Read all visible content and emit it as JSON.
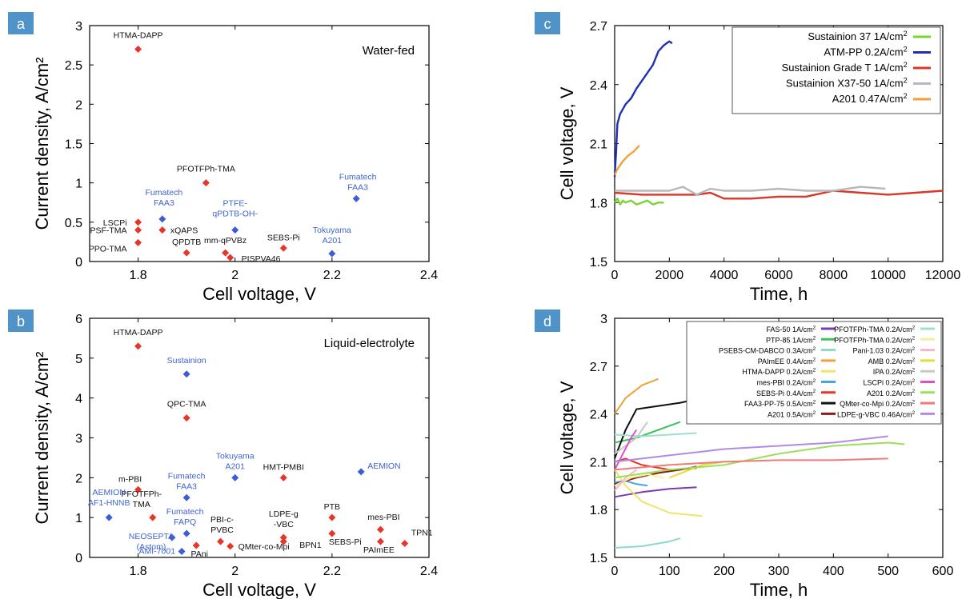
{
  "colors": {
    "red": "#e8352a",
    "blue": "#3d5cd6",
    "label_blue": "#3f63d3",
    "panel_badge": "#4f93c9"
  },
  "chart_data": [
    {
      "panel": "a",
      "type": "scatter",
      "annotation": "Water-fed",
      "xlabel": "Cell voltage, V",
      "ylabel": "Current density, A/cm²",
      "xlim": [
        1.7,
        2.4
      ],
      "ylim": [
        0,
        3
      ],
      "xticks": [
        "1.8",
        "2",
        "2.2",
        "2.4"
      ],
      "yticks": [
        "0",
        "0.5",
        "1",
        "1.5",
        "2",
        "2.5",
        "3"
      ],
      "points": [
        {
          "label": "HTMA-DAPP",
          "x": 1.8,
          "y": 2.7,
          "color": "red"
        },
        {
          "label": "PFOTFPh-TMA",
          "x": 1.94,
          "y": 1.0,
          "color": "red"
        },
        {
          "label": "LSCPi",
          "x": 1.8,
          "y": 0.5,
          "color": "red"
        },
        {
          "label": "PSF-TMA",
          "x": 1.8,
          "y": 0.4,
          "color": "red"
        },
        {
          "label": "PPO-TMA",
          "x": 1.8,
          "y": 0.24,
          "color": "red"
        },
        {
          "label": "xQAPS",
          "x": 1.85,
          "y": 0.4,
          "color": "red"
        },
        {
          "label": "QPDTB",
          "x": 1.9,
          "y": 0.11,
          "color": "red"
        },
        {
          "label": "mm-qPVBz",
          "x": 1.98,
          "y": 0.11,
          "color": "red"
        },
        {
          "label": "PISPVA46",
          "x": 1.99,
          "y": 0.05,
          "color": "red"
        },
        {
          "label": "SEBS-Pi",
          "x": 2.1,
          "y": 0.17,
          "color": "red"
        },
        {
          "label": "Fumatech FAA3",
          "x": 1.85,
          "y": 0.54,
          "color": "blue"
        },
        {
          "label": "PTFE- qPDTB-OH-",
          "x": 2.0,
          "y": 0.4,
          "color": "blue"
        },
        {
          "label": "Fumatech FAA3",
          "x": 2.25,
          "y": 0.8,
          "color": "blue"
        },
        {
          "label": "Tokuyama A201",
          "x": 2.2,
          "y": 0.1,
          "color": "blue"
        }
      ]
    },
    {
      "panel": "b",
      "type": "scatter",
      "annotation": "Liquid-electrolyte",
      "xlabel": "Cell voltage, V",
      "ylabel": "Current density, A/cm²",
      "xlim": [
        1.7,
        2.4
      ],
      "ylim": [
        0,
        6
      ],
      "xticks": [
        "1.8",
        "2",
        "2.2",
        "2.4"
      ],
      "yticks": [
        "0",
        "1",
        "2",
        "3",
        "4",
        "5",
        "6"
      ],
      "points": [
        {
          "label": "HTMA-DAPP",
          "x": 1.8,
          "y": 5.3,
          "color": "red"
        },
        {
          "label": "QPC-TMA",
          "x": 1.9,
          "y": 3.5,
          "color": "red"
        },
        {
          "label": "HMT-PMBI",
          "x": 2.1,
          "y": 2.0,
          "color": "red"
        },
        {
          "label": "m-PBI",
          "x": 1.8,
          "y": 1.7,
          "color": "red"
        },
        {
          "label": "PFOTFPh- TMA",
          "x": 1.83,
          "y": 1.0,
          "color": "red"
        },
        {
          "label": "PAni",
          "x": 1.92,
          "y": 0.3,
          "color": "red"
        },
        {
          "label": "PBI-c- PVBC",
          "x": 1.97,
          "y": 0.4,
          "color": "red"
        },
        {
          "label": "QMter-co-Mpi",
          "x": 1.99,
          "y": 0.28,
          "color": "red"
        },
        {
          "label": "LDPE-g -VBC",
          "x": 2.1,
          "y": 0.5,
          "color": "red"
        },
        {
          "label": "BPN1",
          "x": 2.1,
          "y": 0.4,
          "color": "red"
        },
        {
          "label": "PTB",
          "x": 2.2,
          "y": 1.0,
          "color": "red"
        },
        {
          "label": "SEBS-Pi",
          "x": 2.2,
          "y": 0.6,
          "color": "red"
        },
        {
          "label": "mes-PBI",
          "x": 2.3,
          "y": 0.7,
          "color": "red"
        },
        {
          "label": "PAImEE",
          "x": 2.3,
          "y": 0.4,
          "color": "red"
        },
        {
          "label": "TPN1",
          "x": 2.35,
          "y": 0.35,
          "color": "red"
        },
        {
          "label": "Sustainion",
          "x": 1.9,
          "y": 4.6,
          "color": "blue"
        },
        {
          "label": "Tokuyama A201",
          "x": 2.0,
          "y": 2.0,
          "color": "blue"
        },
        {
          "label": "AEMION",
          "x": 2.26,
          "y": 2.15,
          "color": "blue"
        },
        {
          "label": "Fumatech FAA3",
          "x": 1.9,
          "y": 1.5,
          "color": "blue"
        },
        {
          "label": "AEMION AF1-HNNB",
          "x": 1.74,
          "y": 1.0,
          "color": "blue"
        },
        {
          "label": "Fumatech FAPQ",
          "x": 1.9,
          "y": 0.6,
          "color": "blue"
        },
        {
          "label": "NEOSEPTA (Astom)",
          "x": 1.87,
          "y": 0.5,
          "color": "blue"
        },
        {
          "label": "AMI-7001",
          "x": 1.89,
          "y": 0.15,
          "color": "blue"
        }
      ]
    },
    {
      "panel": "c",
      "type": "line",
      "xlabel": "Time, h",
      "ylabel": "Cell voltage, V",
      "xlim": [
        0,
        12000
      ],
      "ylim": [
        1.5,
        2.7
      ],
      "xticks": [
        "0",
        "2000",
        "4000",
        "6000",
        "8000",
        "10000",
        "12000"
      ],
      "yticks": [
        "1.5",
        "1.8",
        "2.1",
        "2.4",
        "2.7"
      ],
      "legend": "top-right",
      "series": [
        {
          "name": "Sustainion 37 1A/cm²",
          "color": "#7bd432",
          "points": [
            [
              0,
              1.8
            ],
            [
              100,
              1.82
            ],
            [
              200,
              1.79
            ],
            [
              300,
              1.81
            ],
            [
              400,
              1.8
            ],
            [
              600,
              1.81
            ],
            [
              800,
              1.79
            ],
            [
              1000,
              1.8
            ],
            [
              1200,
              1.81
            ],
            [
              1400,
              1.79
            ],
            [
              1600,
              1.8
            ],
            [
              1800,
              1.8
            ]
          ]
        },
        {
          "name": "ATM-PP 0.2A/cm²",
          "color": "#1f2fb5",
          "points": [
            [
              0,
              1.93
            ],
            [
              50,
              2.05
            ],
            [
              100,
              2.2
            ],
            [
              200,
              2.25
            ],
            [
              400,
              2.3
            ],
            [
              600,
              2.33
            ],
            [
              800,
              2.38
            ],
            [
              1000,
              2.42
            ],
            [
              1200,
              2.46
            ],
            [
              1400,
              2.5
            ],
            [
              1600,
              2.57
            ],
            [
              1800,
              2.6
            ],
            [
              2000,
              2.62
            ],
            [
              2100,
              2.61
            ]
          ]
        },
        {
          "name": "Sustainion Grade T 1A/cm²",
          "color": "#d8372a",
          "points": [
            [
              0,
              1.85
            ],
            [
              1000,
              1.84
            ],
            [
              2000,
              1.84
            ],
            [
              3000,
              1.84
            ],
            [
              3500,
              1.85
            ],
            [
              4000,
              1.82
            ],
            [
              5000,
              1.82
            ],
            [
              6000,
              1.83
            ],
            [
              7000,
              1.83
            ],
            [
              8000,
              1.86
            ],
            [
              9000,
              1.85
            ],
            [
              10000,
              1.84
            ],
            [
              11000,
              1.85
            ],
            [
              12000,
              1.86
            ]
          ]
        },
        {
          "name": "Sustainion X37-50 1A/cm²",
          "color": "#b8b8b8",
          "points": [
            [
              0,
              1.86
            ],
            [
              1000,
              1.86
            ],
            [
              2000,
              1.86
            ],
            [
              2500,
              1.88
            ],
            [
              3000,
              1.84
            ],
            [
              3500,
              1.87
            ],
            [
              4000,
              1.86
            ],
            [
              5000,
              1.86
            ],
            [
              6000,
              1.87
            ],
            [
              7000,
              1.86
            ],
            [
              8000,
              1.86
            ],
            [
              9000,
              1.88
            ],
            [
              9900,
              1.87
            ]
          ]
        },
        {
          "name": "A201 0.47A/cm²",
          "color": "#f0a23a",
          "points": [
            [
              0,
              1.94
            ],
            [
              100,
              1.97
            ],
            [
              300,
              2.01
            ],
            [
              500,
              2.04
            ],
            [
              700,
              2.06
            ],
            [
              900,
              2.09
            ]
          ]
        }
      ]
    },
    {
      "panel": "d",
      "type": "line",
      "xlabel": "Time, h",
      "ylabel": "Cell voltage, V",
      "xlim": [
        0,
        600
      ],
      "ylim": [
        1.5,
        3.0
      ],
      "xticks": [
        "0",
        "100",
        "200",
        "300",
        "400",
        "500",
        "600"
      ],
      "yticks": [
        "1.5",
        "1.8",
        "2.1",
        "2.4",
        "2.7",
        "3"
      ],
      "legend": "top-right",
      "series": [
        {
          "name": "FAS-50 1A/cm²",
          "color": "#7b3ab0",
          "points": [
            [
              0,
              1.88
            ],
            [
              50,
              1.91
            ],
            [
              100,
              1.93
            ],
            [
              150,
              1.94
            ]
          ]
        },
        {
          "name": "PTP-85 1A/cm²",
          "color": "#3fc25a",
          "points": [
            [
              0,
              2.22
            ],
            [
              40,
              2.25
            ],
            [
              80,
              2.3
            ],
            [
              120,
              2.35
            ]
          ]
        },
        {
          "name": "PSEBS-CM-DABCO 0.3A/cm²",
          "color": "#8fd8c9",
          "points": [
            [
              0,
              1.56
            ],
            [
              50,
              1.57
            ],
            [
              100,
              1.6
            ],
            [
              120,
              1.62
            ]
          ]
        },
        {
          "name": "PAImEE 0.4A/cm²",
          "color": "#f0a23a",
          "points": [
            [
              0,
              2.4
            ],
            [
              20,
              2.5
            ],
            [
              50,
              2.58
            ],
            [
              80,
              2.62
            ]
          ]
        },
        {
          "name": "HTMA-DAPP 0.2A/cm²",
          "color": "#f2e36a",
          "points": [
            [
              0,
              2.05
            ],
            [
              20,
              1.95
            ],
            [
              50,
              1.85
            ],
            [
              100,
              1.78
            ],
            [
              160,
              1.76
            ]
          ]
        },
        {
          "name": "mes-PBI 0.2A/cm²",
          "color": "#4aa3e0",
          "points": [
            [
              0,
              1.97
            ],
            [
              20,
              1.98
            ],
            [
              40,
              1.96
            ],
            [
              60,
              1.95
            ]
          ]
        },
        {
          "name": "SEBS-Pi 0.4A/cm²",
          "color": "#e8352a",
          "points": [
            [
              0,
              2.1
            ],
            [
              20,
              2.12
            ],
            [
              50,
              2.08
            ],
            [
              100,
              2.05
            ],
            [
              150,
              2.06
            ]
          ]
        },
        {
          "name": "FAA3-PP-75 0.5A/cm²",
          "color": "#111111",
          "points": [
            [
              0,
              2.12
            ],
            [
              20,
              2.3
            ],
            [
              40,
              2.43
            ],
            [
              80,
              2.45
            ],
            [
              120,
              2.47
            ],
            [
              160,
              2.5
            ],
            [
              200,
              2.53
            ],
            [
              225,
              2.53
            ]
          ]
        },
        {
          "name": "A201 0.5A/cm²",
          "color": "#8b1a1a",
          "points": [
            [
              0,
              1.96
            ],
            [
              40,
              2.0
            ],
            [
              80,
              2.03
            ],
            [
              120,
              2.05
            ],
            [
              150,
              2.07
            ]
          ]
        },
        {
          "name": "PFOTFPh-TMA 0.2A/cm²",
          "color": "#9de0cf",
          "points": [
            [
              0,
              2.27
            ],
            [
              50,
              2.26
            ],
            [
              100,
              2.27
            ],
            [
              150,
              2.28
            ]
          ]
        },
        {
          "name": "PFOTFPh-TMA 0.2A/cm²",
          "color": "#f6ef9a",
          "points": [
            [
              0,
              1.95
            ],
            [
              30,
              2.0
            ],
            [
              60,
              2.02
            ],
            [
              90,
              2.0
            ]
          ]
        },
        {
          "name": "Pani-1.03 0.2A/cm²",
          "color": "#f3b6d0",
          "points": [
            [
              0,
              1.92
            ],
            [
              20,
              2.0
            ],
            [
              40,
              2.05
            ]
          ]
        },
        {
          "name": "AMB 0.2A/cm²",
          "color": "#e8dc3a",
          "points": [
            [
              100,
              2.0
            ],
            [
              130,
              2.04
            ],
            [
              160,
              2.08
            ],
            [
              200,
              2.1
            ]
          ]
        },
        {
          "name": "IPA 0.2A/cm²",
          "color": "#c8c8c8",
          "points": [
            [
              0,
              2.15
            ],
            [
              20,
              2.2
            ],
            [
              40,
              2.25
            ],
            [
              60,
              2.35
            ]
          ]
        },
        {
          "name": "LSCPi 0.2A/cm²",
          "color": "#e24ec6",
          "points": [
            [
              0,
              2.05
            ],
            [
              15,
              2.15
            ],
            [
              30,
              2.25
            ],
            [
              40,
              2.3
            ]
          ]
        },
        {
          "name": "A201 0.2A/cm²",
          "color": "#9be05a",
          "points": [
            [
              0,
              2.0
            ],
            [
              100,
              2.05
            ],
            [
              200,
              2.08
            ],
            [
              300,
              2.15
            ],
            [
              400,
              2.2
            ],
            [
              500,
              2.22
            ],
            [
              530,
              2.21
            ]
          ]
        },
        {
          "name": "QMter-co-Mpi 0.2A/cm²",
          "color": "#f07a7a",
          "points": [
            [
              0,
              2.05
            ],
            [
              100,
              2.08
            ],
            [
              200,
              2.1
            ],
            [
              300,
              2.11
            ],
            [
              400,
              2.11
            ],
            [
              500,
              2.12
            ]
          ]
        },
        {
          "name": "LDPE-g-VBC 0.46A/cm²",
          "color": "#b28be6",
          "points": [
            [
              0,
              2.1
            ],
            [
              100,
              2.14
            ],
            [
              200,
              2.18
            ],
            [
              300,
              2.2
            ],
            [
              400,
              2.22
            ],
            [
              500,
              2.26
            ]
          ]
        }
      ]
    }
  ]
}
